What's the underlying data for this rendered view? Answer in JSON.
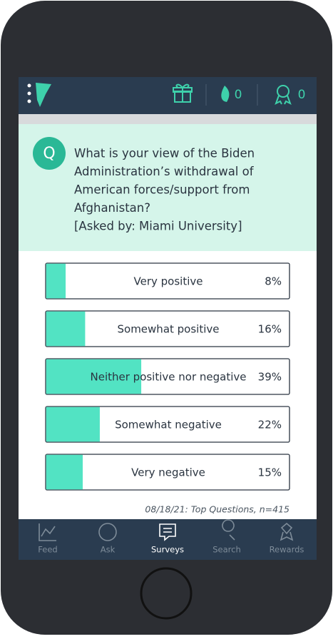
{
  "header": {
    "streak_count": "0",
    "rewards_count": "0"
  },
  "question": {
    "icon": "Q",
    "text": [
      "What is your view of the Biden",
      "Administration’s withdrawal of",
      "American forces/support from",
      "Afghanistan?",
      "[Asked by: Miami University]"
    ]
  },
  "options": [
    {
      "label": "Very positive",
      "value": 8,
      "value_label": "8%"
    },
    {
      "label": "Somewhat positive",
      "value": 16,
      "value_label": "16%"
    },
    {
      "label": "Neither positive nor negative",
      "value": 39,
      "value_label": "39%"
    },
    {
      "label": "Somewhat negative",
      "value": 22,
      "value_label": "22%"
    },
    {
      "label": "Very negative",
      "value": 15,
      "value_label": "15%"
    }
  ],
  "footnote": "08/18/21: Top Questions, n=415",
  "nav": [
    "Feed",
    "Ask",
    "Surveys",
    "Search",
    "Rewards"
  ]
}
